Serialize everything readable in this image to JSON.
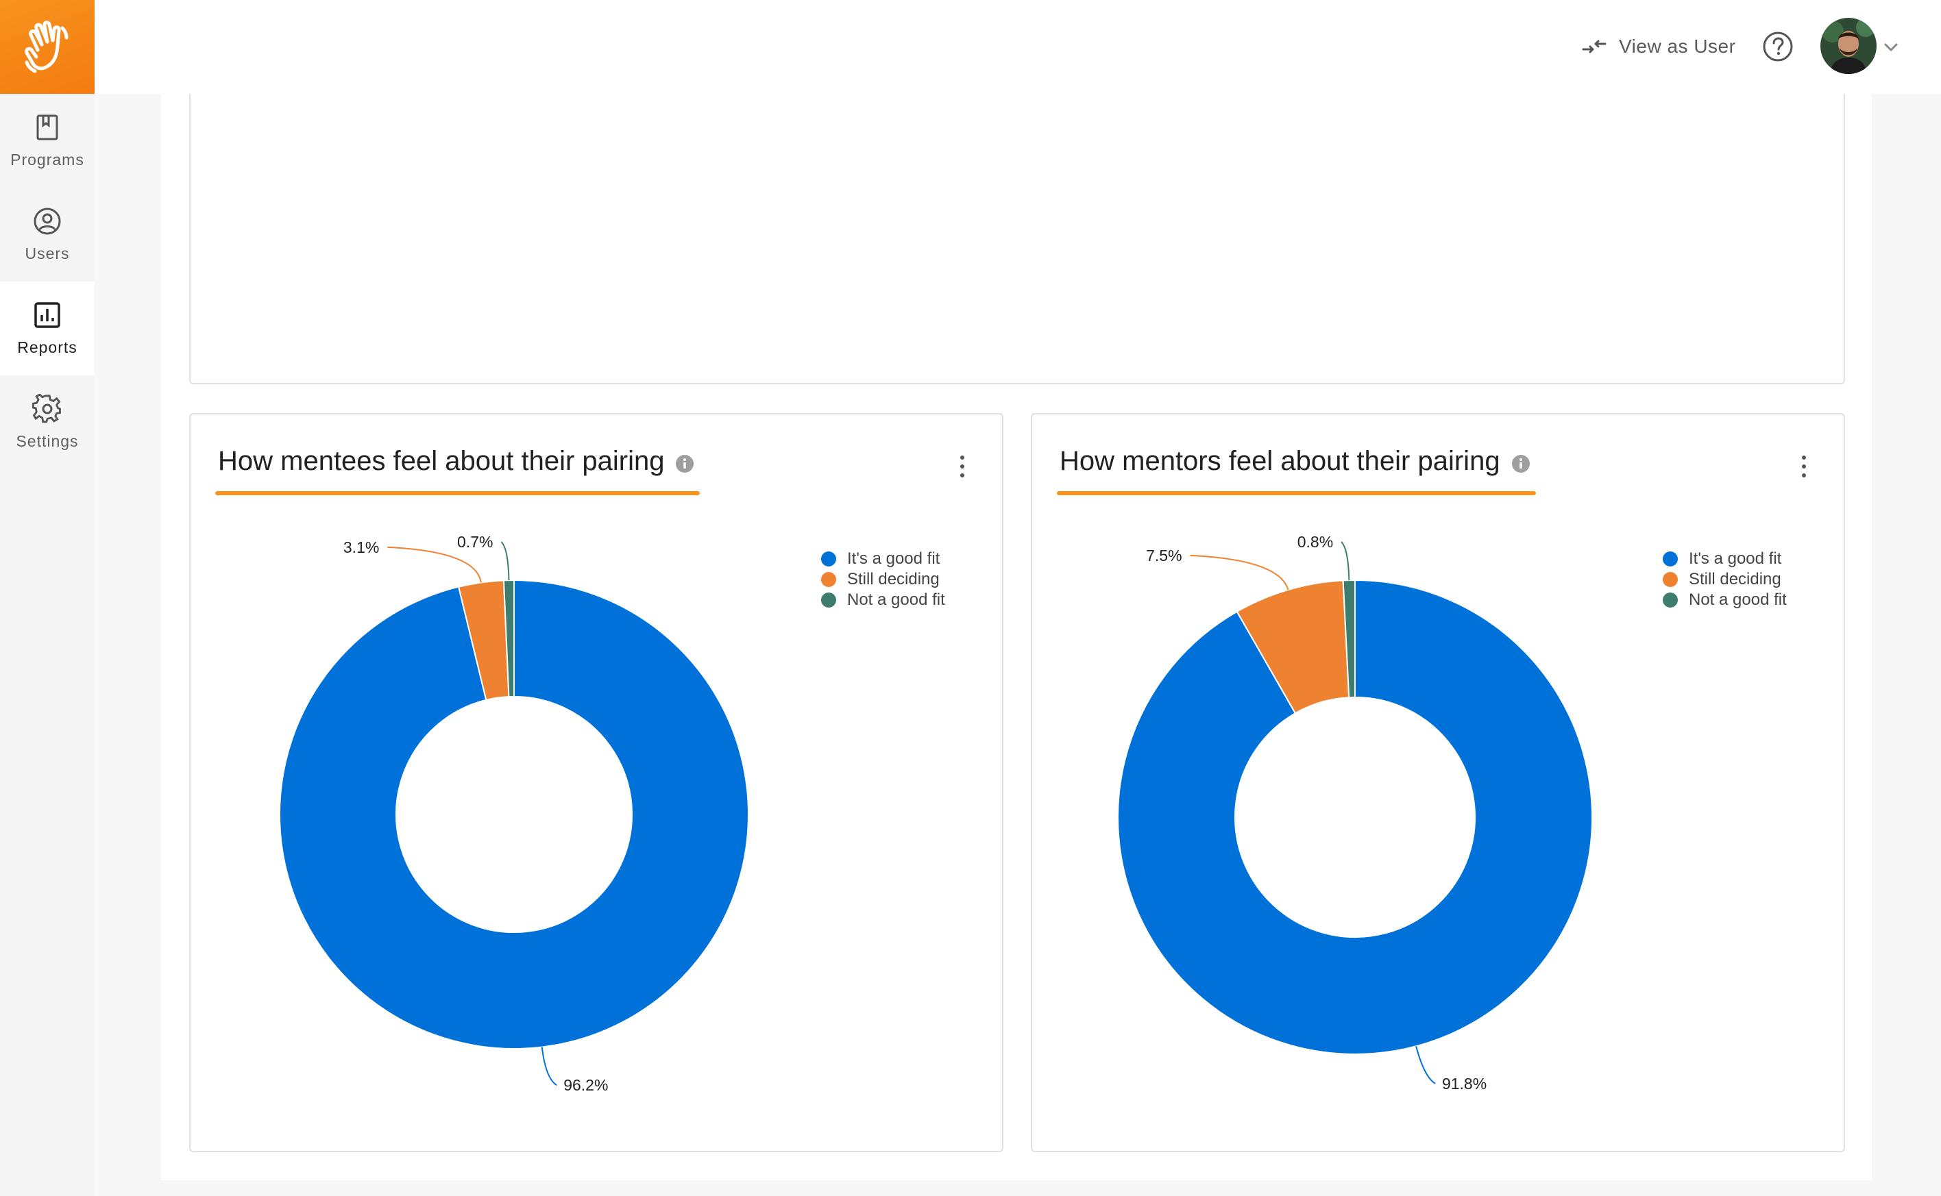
{
  "sidebar": {
    "items": [
      {
        "label": "Programs",
        "icon": "book-icon",
        "active": false
      },
      {
        "label": "Users",
        "icon": "user-circle-icon",
        "active": false
      },
      {
        "label": "Reports",
        "icon": "bar-chart-icon",
        "active": true
      },
      {
        "label": "Settings",
        "icon": "gear-icon",
        "active": false
      }
    ]
  },
  "header": {
    "view_as_user_label": "View as User"
  },
  "colors": {
    "brand_orange": "#f7931e",
    "good_fit": "#0071d8",
    "still_deciding": "#ef8231",
    "not_good_fit": "#3d7d70",
    "underline": "#f7941d"
  },
  "charts": [
    {
      "title": "How mentees feel about their pairing"
    },
    {
      "title": "How mentors feel about their pairing"
    }
  ],
  "chart_data": [
    {
      "type": "pie",
      "variant": "donut",
      "title": "How mentees feel about their pairing",
      "legend": "top-right",
      "series": [
        {
          "name": "It's a good fit",
          "value": 96.2,
          "label": "96.2%"
        },
        {
          "name": "Still deciding",
          "value": 3.1,
          "label": "3.1%"
        },
        {
          "name": "Not a good fit",
          "value": 0.7,
          "label": "0.7%"
        }
      ]
    },
    {
      "type": "pie",
      "variant": "donut",
      "title": "How mentors feel about their pairing",
      "legend": "top-right",
      "series": [
        {
          "name": "It's a good fit",
          "value": 91.8,
          "label": "91.8%"
        },
        {
          "name": "Still deciding",
          "value": 7.5,
          "label": "7.5%"
        },
        {
          "name": "Not a good fit",
          "value": 0.8,
          "label": "0.8%"
        }
      ]
    }
  ]
}
